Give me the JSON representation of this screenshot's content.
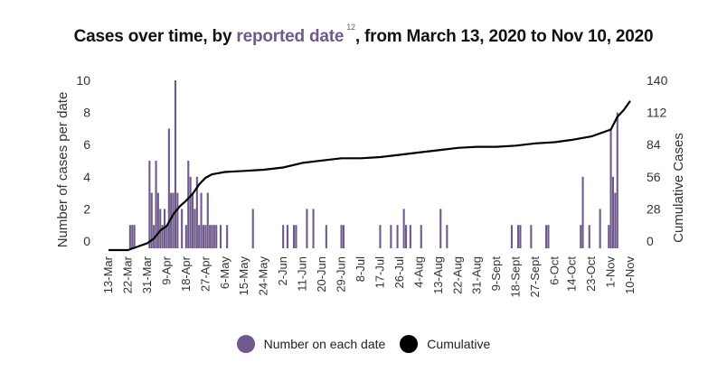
{
  "title": {
    "prefix": "Cases over time, by ",
    "highlight": "reported date",
    "footnote": "12",
    "suffix": ", from March 13, 2020 to Nov 10, 2020"
  },
  "colors": {
    "bar": "#6f5a8c",
    "line": "#000000",
    "highlight": "#6f5a8c"
  },
  "legend": [
    {
      "label": "Number on each date",
      "color": "#6f5a8c"
    },
    {
      "label": "Cumulative",
      "color": "#000000"
    }
  ],
  "chart_data": {
    "type": "bar",
    "title": "Cases over time, by reported date, from March 13, 2020 to Nov 10, 2020",
    "ylabel": "Number of cases per date",
    "y2label": "Cumulative Cases",
    "ylim": [
      0,
      10
    ],
    "y2lim": [
      0,
      140
    ],
    "yticks": [
      0,
      2,
      4,
      6,
      8,
      10
    ],
    "y2ticks": [
      0,
      28,
      56,
      84,
      112,
      140
    ],
    "x_domain": [
      "2020-03-13",
      "2020-11-10"
    ],
    "x_tick_labels": [
      "13-Mar",
      "22-Mar",
      "31-Mar",
      "9-Apr",
      "18-Apr",
      "27-Apr",
      "6-May",
      "15-May",
      "24-May",
      "2-Jun",
      "11-Jun",
      "20-Jun",
      "29-Jun",
      "8-Jul",
      "17-Jul",
      "26-Jul",
      "4-Aug",
      "13-Aug",
      "22-Aug",
      "31-Aug",
      "9-Sept",
      "18-Sept",
      "27-Sept",
      "6-Oct",
      "14-Oct",
      "23-Oct",
      "1-Nov",
      "10-Nov"
    ],
    "x_tick_dates": [
      "2020-03-13",
      "2020-03-22",
      "2020-03-31",
      "2020-04-09",
      "2020-04-18",
      "2020-04-27",
      "2020-05-06",
      "2020-05-15",
      "2020-05-24",
      "2020-06-02",
      "2020-06-11",
      "2020-06-20",
      "2020-06-29",
      "2020-07-08",
      "2020-07-17",
      "2020-07-26",
      "2020-08-04",
      "2020-08-13",
      "2020-08-22",
      "2020-08-31",
      "2020-09-09",
      "2020-09-18",
      "2020-09-27",
      "2020-10-06",
      "2020-10-14",
      "2020-10-23",
      "2020-11-01",
      "2020-11-10"
    ],
    "series": [
      {
        "name": "Number on each date",
        "type": "bar",
        "axis": "left",
        "points": [
          [
            "2020-03-23",
            1
          ],
          [
            "2020-03-24",
            1
          ],
          [
            "2020-03-25",
            1
          ],
          [
            "2020-04-01",
            5
          ],
          [
            "2020-04-02",
            3
          ],
          [
            "2020-04-03",
            1
          ],
          [
            "2020-04-04",
            5
          ],
          [
            "2020-04-05",
            3
          ],
          [
            "2020-04-06",
            2
          ],
          [
            "2020-04-07",
            1
          ],
          [
            "2020-04-08",
            2
          ],
          [
            "2020-04-09",
            1
          ],
          [
            "2020-04-10",
            7
          ],
          [
            "2020-04-11",
            3
          ],
          [
            "2020-04-12",
            3
          ],
          [
            "2020-04-13",
            10
          ],
          [
            "2020-04-14",
            3
          ],
          [
            "2020-04-16",
            2
          ],
          [
            "2020-04-18",
            1
          ],
          [
            "2020-04-19",
            5
          ],
          [
            "2020-04-20",
            4
          ],
          [
            "2020-04-21",
            3
          ],
          [
            "2020-04-22",
            2
          ],
          [
            "2020-04-23",
            4
          ],
          [
            "2020-04-24",
            1
          ],
          [
            "2020-04-25",
            3
          ],
          [
            "2020-04-26",
            1
          ],
          [
            "2020-04-27",
            1
          ],
          [
            "2020-04-28",
            3
          ],
          [
            "2020-04-29",
            1
          ],
          [
            "2020-04-30",
            1
          ],
          [
            "2020-05-01",
            1
          ],
          [
            "2020-05-02",
            1
          ],
          [
            "2020-05-04",
            1
          ],
          [
            "2020-05-07",
            1
          ],
          [
            "2020-05-19",
            2
          ],
          [
            "2020-06-02",
            1
          ],
          [
            "2020-06-04",
            1
          ],
          [
            "2020-06-07",
            1
          ],
          [
            "2020-06-08",
            1
          ],
          [
            "2020-06-13",
            2
          ],
          [
            "2020-06-16",
            2
          ],
          [
            "2020-06-22",
            1
          ],
          [
            "2020-06-29",
            1
          ],
          [
            "2020-06-30",
            1
          ],
          [
            "2020-07-17",
            1
          ],
          [
            "2020-07-22",
            1
          ],
          [
            "2020-07-25",
            1
          ],
          [
            "2020-07-28",
            2
          ],
          [
            "2020-07-29",
            1
          ],
          [
            "2020-07-31",
            1
          ],
          [
            "2020-08-05",
            1
          ],
          [
            "2020-08-14",
            2
          ],
          [
            "2020-08-17",
            1
          ],
          [
            "2020-09-16",
            1
          ],
          [
            "2020-09-19",
            1
          ],
          [
            "2020-09-20",
            1
          ],
          [
            "2020-09-25",
            1
          ],
          [
            "2020-10-02",
            1
          ],
          [
            "2020-10-03",
            1
          ],
          [
            "2020-10-18",
            1
          ],
          [
            "2020-10-19",
            4
          ],
          [
            "2020-10-22",
            1
          ],
          [
            "2020-10-27",
            2
          ],
          [
            "2020-10-31",
            1
          ],
          [
            "2020-11-01",
            7
          ],
          [
            "2020-11-02",
            4
          ],
          [
            "2020-11-03",
            3
          ],
          [
            "2020-11-04",
            8
          ]
        ]
      },
      {
        "name": "Cumulative",
        "type": "line",
        "axis": "right",
        "points": [
          [
            "2020-03-13",
            0
          ],
          [
            "2020-03-22",
            0
          ],
          [
            "2020-03-25",
            2
          ],
          [
            "2020-03-28",
            4
          ],
          [
            "2020-03-31",
            6
          ],
          [
            "2020-04-03",
            10
          ],
          [
            "2020-04-06",
            17
          ],
          [
            "2020-04-09",
            21
          ],
          [
            "2020-04-12",
            31
          ],
          [
            "2020-04-15",
            38
          ],
          [
            "2020-04-18",
            43
          ],
          [
            "2020-04-21",
            49
          ],
          [
            "2020-04-24",
            57
          ],
          [
            "2020-04-27",
            63
          ],
          [
            "2020-04-30",
            66
          ],
          [
            "2020-05-03",
            67
          ],
          [
            "2020-05-06",
            68
          ],
          [
            "2020-05-15",
            69
          ],
          [
            "2020-05-24",
            70
          ],
          [
            "2020-06-02",
            72
          ],
          [
            "2020-06-11",
            76
          ],
          [
            "2020-06-20",
            78
          ],
          [
            "2020-06-29",
            80
          ],
          [
            "2020-07-08",
            80
          ],
          [
            "2020-07-17",
            81
          ],
          [
            "2020-07-26",
            83
          ],
          [
            "2020-08-04",
            85
          ],
          [
            "2020-08-13",
            87
          ],
          [
            "2020-08-22",
            89
          ],
          [
            "2020-08-31",
            90
          ],
          [
            "2020-09-09",
            90
          ],
          [
            "2020-09-18",
            91
          ],
          [
            "2020-09-27",
            93
          ],
          [
            "2020-10-06",
            94
          ],
          [
            "2020-10-14",
            96
          ],
          [
            "2020-10-23",
            99
          ],
          [
            "2020-11-01",
            105
          ],
          [
            "2020-11-04",
            116
          ],
          [
            "2020-11-07",
            122
          ],
          [
            "2020-11-10",
            130
          ]
        ]
      }
    ],
    "grid": false,
    "legend_position": "bottom"
  }
}
